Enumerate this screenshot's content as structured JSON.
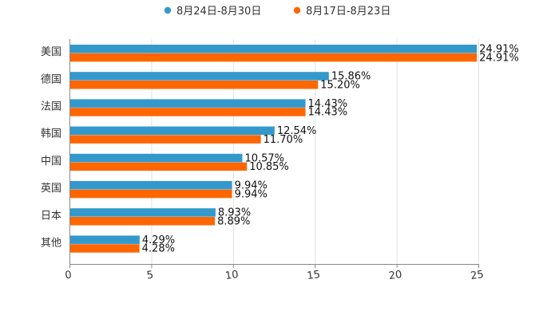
{
  "chart_data": {
    "type": "bar",
    "orientation": "horizontal",
    "categories": [
      "美国",
      "德国",
      "法国",
      "韩国",
      "中国",
      "英国",
      "日本",
      "其他"
    ],
    "series": [
      {
        "name": "8月24日-8月30日",
        "color": "#3399cc",
        "values": [
          24.91,
          15.86,
          14.43,
          12.54,
          10.57,
          9.94,
          8.93,
          4.29
        ],
        "labels": [
          "24.91%",
          "15.86%",
          "14.43%",
          "12.54%",
          "10.57%",
          "9.94%",
          "8.93%",
          "4.29%"
        ]
      },
      {
        "name": "8月17日-8月23日",
        "color": "#ff6600",
        "values": [
          24.91,
          15.2,
          14.43,
          11.7,
          10.85,
          9.94,
          8.89,
          4.28
        ],
        "labels": [
          "24.91%",
          "15.20%",
          "14.43%",
          "11.70%",
          "10.85%",
          "9.94%",
          "8.89%",
          "4.28%"
        ]
      }
    ],
    "xlim": [
      0,
      25
    ],
    "xticks": [
      "0",
      "5",
      "10",
      "15",
      "20",
      "25"
    ],
    "legend_position": "top-center",
    "grid": true
  }
}
